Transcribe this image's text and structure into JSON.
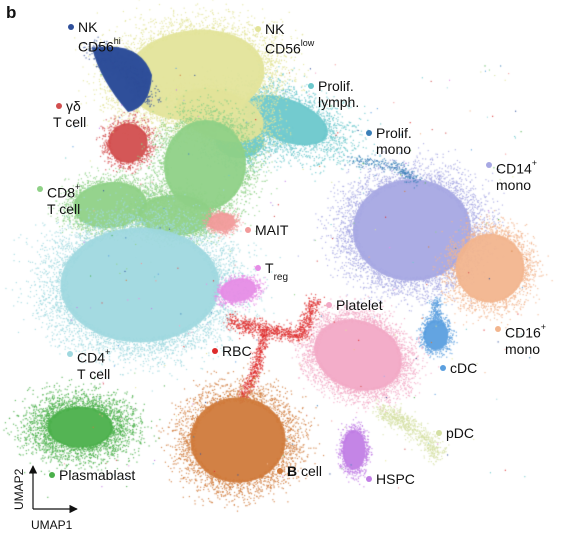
{
  "panel_letter": "b",
  "chart_data": {
    "type": "scatter",
    "title": "",
    "xlabel": "UMAP1",
    "ylabel": "UMAP2",
    "grid": false,
    "legend": "none (direct cluster labels)",
    "series": [
      {
        "name": "NK CD56hi",
        "color": "#2f4f9a"
      },
      {
        "name": "NK CD56low",
        "color": "#e3e49a"
      },
      {
        "name": "Prolif. lymph.",
        "color": "#6cc8cc"
      },
      {
        "name": "Prolif. mono",
        "color": "#3a7fb8"
      },
      {
        "name": "γδ T cell",
        "color": "#d24e4e"
      },
      {
        "name": "CD8+ T cell",
        "color": "#8fd187"
      },
      {
        "name": "MAIT",
        "color": "#f29a9a"
      },
      {
        "name": "Treg",
        "color": "#e68ce6"
      },
      {
        "name": "CD4+ T cell",
        "color": "#9fd8df"
      },
      {
        "name": "CD14+ mono",
        "color": "#a7a8e3"
      },
      {
        "name": "CD16+ mono",
        "color": "#f2b58e"
      },
      {
        "name": "cDC",
        "color": "#5b9fdf"
      },
      {
        "name": "Platelet",
        "color": "#f2a9c6"
      },
      {
        "name": "RBC",
        "color": "#dd2b2b"
      },
      {
        "name": "pDC",
        "color": "#d4e0a3"
      },
      {
        "name": "B cell",
        "color": "#d07a3b"
      },
      {
        "name": "HSPC",
        "color": "#c17ee5"
      },
      {
        "name": "Plasmablast",
        "color": "#4bb04b"
      }
    ]
  },
  "labels": {
    "nk_hi_line1": "NK",
    "nk_hi_line2": "CD56",
    "nk_hi_sup": "hi",
    "nk_low_line1": "NK",
    "nk_low_line2": "CD56",
    "nk_low_sup": "low",
    "prolif_lymph_line1": "Prolif.",
    "prolif_lymph_line2": "lymph.",
    "prolif_mono_line1": "Prolif.",
    "prolif_mono_line2": "mono",
    "gd_line1": "γδ",
    "gd_line2": "T cell",
    "cd14_main": "CD14",
    "cd14_sup": "+",
    "cd14_line2": "mono",
    "cd8_main": "CD8",
    "cd8_sup": "+",
    "cd8_line2": "T cell",
    "mait": "MAIT",
    "treg_main": "T",
    "treg_sub": "reg",
    "platelet": "Platelet",
    "cd16_main": "CD16",
    "cd16_sup": "+",
    "cd16_line2": "mono",
    "rbc": "RBC",
    "cd4_main": "CD4",
    "cd4_sup": "+",
    "cd4_line2": "T cell",
    "cdc": "cDC",
    "pdc": "pDC",
    "b_cell_b": "B",
    "b_cell_rest": " cell",
    "hspc": "HSPC",
    "plasmablast": "Plasmablast"
  }
}
